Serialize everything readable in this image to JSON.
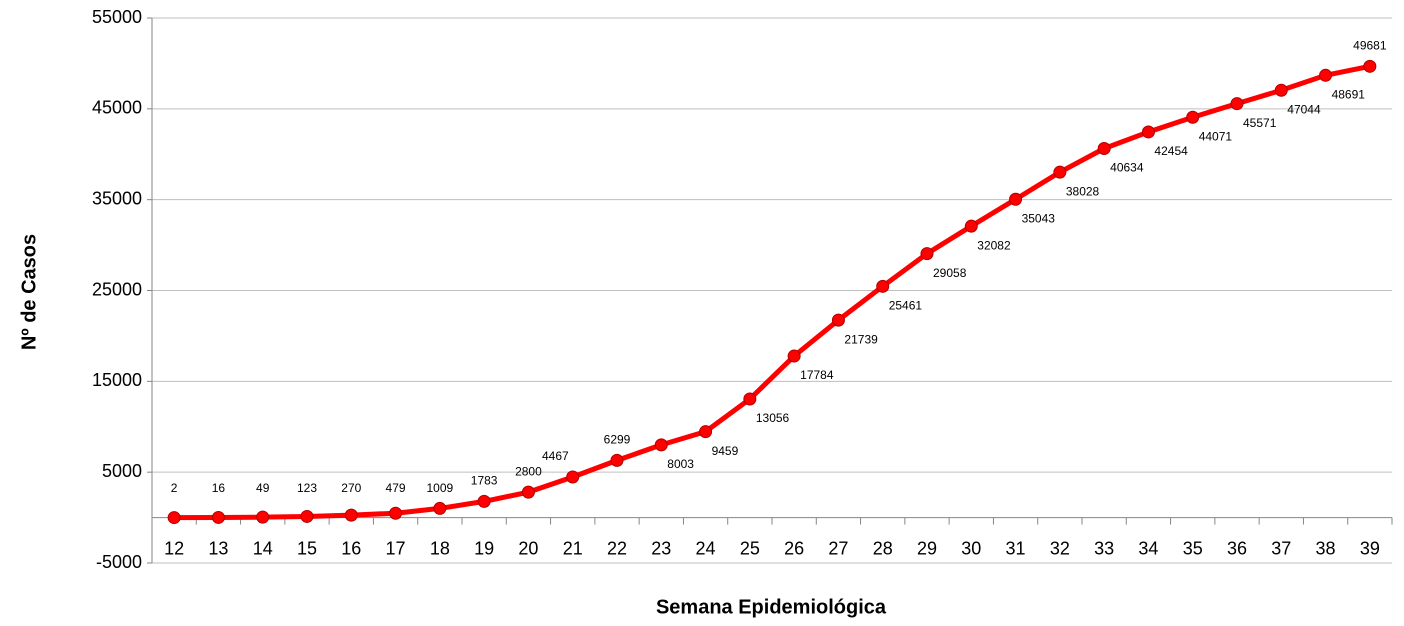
{
  "chart_data": {
    "type": "line",
    "x_label": "Semana Epidemiológica",
    "y_label": "Nº de Casos",
    "categories": [
      "12",
      "13",
      "14",
      "15",
      "16",
      "17",
      "18",
      "19",
      "20",
      "21",
      "22",
      "23",
      "24",
      "25",
      "26",
      "27",
      "28",
      "29",
      "30",
      "31",
      "32",
      "33",
      "34",
      "35",
      "36",
      "37",
      "38",
      "39"
    ],
    "values": [
      2,
      16,
      49,
      123,
      270,
      479,
      1009,
      1783,
      2800,
      4467,
      6299,
      8003,
      9459,
      13056,
      17784,
      21739,
      25461,
      29058,
      32082,
      35043,
      38028,
      40634,
      42454,
      44071,
      45571,
      47044,
      48691,
      49681
    ],
    "color": "#ff0000",
    "ylim": [
      -5000,
      55000
    ],
    "yticks": [
      -5000,
      5000,
      15000,
      25000,
      35000,
      45000,
      55000
    ],
    "grid": true
  }
}
